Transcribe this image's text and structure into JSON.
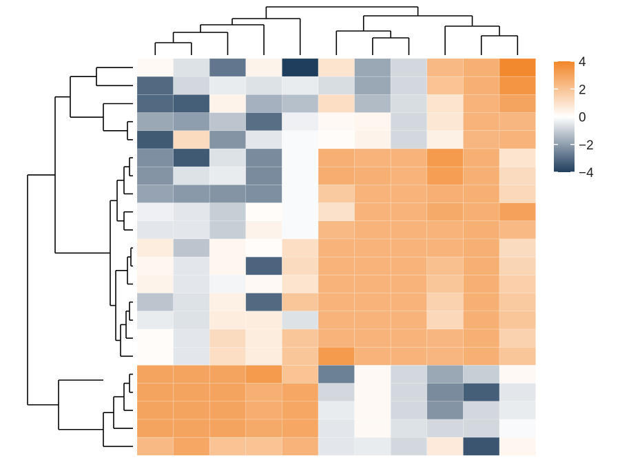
{
  "chart_data": {
    "type": "heatmap",
    "title": "",
    "xlabel": "",
    "ylabel": "",
    "n_rows": 22,
    "n_cols": 11,
    "values": [
      [
        0.2,
        -0.6,
        -2.8,
        0.4,
        -4.0,
        0.9,
        -1.8,
        -0.8,
        2.3,
        2.6,
        3.9
      ],
      [
        -3.1,
        -0.8,
        -0.4,
        -0.6,
        -0.4,
        -0.7,
        -1.8,
        -0.8,
        2.0,
        2.6,
        3.5
      ],
      [
        -3.1,
        -3.3,
        0.4,
        -1.6,
        -1.3,
        1.1,
        -1.4,
        -0.7,
        0.9,
        2.5,
        3.0
      ],
      [
        -1.8,
        -2.0,
        -1.2,
        -3.0,
        -0.3,
        0.2,
        0.3,
        -0.8,
        0.8,
        2.5,
        2.4
      ],
      [
        -3.4,
        1.2,
        -2.2,
        -0.5,
        -0.1,
        0.1,
        0.4,
        -0.8,
        0.5,
        2.4,
        2.5
      ],
      [
        -2.3,
        -3.4,
        -0.6,
        -2.4,
        -0.1,
        2.6,
        2.5,
        2.5,
        3.3,
        2.6,
        0.9
      ],
      [
        -2.2,
        -0.6,
        -0.4,
        -2.4,
        -0.1,
        2.7,
        2.6,
        2.5,
        3.2,
        2.6,
        1.2
      ],
      [
        -1.9,
        -2.1,
        -2.2,
        -2.3,
        -0.1,
        1.8,
        2.5,
        2.5,
        2.6,
        2.6,
        1.3
      ],
      [
        -0.3,
        -0.5,
        -1.0,
        0.1,
        -0.1,
        1.0,
        2.5,
        2.5,
        2.8,
        2.6,
        3.1
      ],
      [
        -0.5,
        -0.5,
        -1.0,
        0.4,
        -0.1,
        2.3,
        2.5,
        2.5,
        2.5,
        2.6,
        2.3
      ],
      [
        0.6,
        -1.2,
        0.3,
        0.1,
        1.1,
        2.5,
        2.5,
        2.5,
        2.5,
        2.6,
        1.2
      ],
      [
        0.3,
        -0.5,
        0.3,
        -3.2,
        1.2,
        2.5,
        2.5,
        2.5,
        2.1,
        2.6,
        1.4
      ],
      [
        0.4,
        -0.5,
        -0.2,
        0.2,
        0.9,
        2.5,
        2.5,
        2.5,
        1.9,
        2.6,
        1.6
      ],
      [
        -1.2,
        -0.6,
        0.5,
        -3.1,
        1.9,
        2.5,
        2.5,
        2.5,
        1.5,
        2.6,
        1.8
      ],
      [
        -0.4,
        -0.6,
        0.6,
        0.6,
        -0.6,
        2.5,
        2.5,
        2.5,
        1.3,
        2.6,
        1.9
      ],
      [
        0.1,
        -0.5,
        1.2,
        0.6,
        1.9,
        2.5,
        2.5,
        2.5,
        2.4,
        2.6,
        1.5
      ],
      [
        0.1,
        -0.5,
        1.1,
        0.6,
        1.9,
        3.3,
        2.5,
        2.5,
        2.4,
        2.6,
        1.9
      ],
      [
        3.0,
        3.0,
        3.0,
        3.3,
        2.0,
        -2.6,
        0.2,
        -0.8,
        -1.8,
        -1.0,
        0.2
      ],
      [
        3.0,
        3.0,
        3.0,
        2.6,
        2.9,
        -0.8,
        0.2,
        -0.8,
        -2.4,
        -3.3,
        -0.5
      ],
      [
        3.0,
        3.0,
        3.0,
        2.7,
        2.9,
        -0.4,
        0.2,
        -0.8,
        -2.2,
        -0.8,
        -0.4
      ],
      [
        3.0,
        3.0,
        3.0,
        2.8,
        2.9,
        -0.5,
        0.2,
        -0.6,
        -0.8,
        -0.8,
        -0.1
      ],
      [
        2.3,
        2.9,
        2.0,
        2.0,
        2.5,
        -0.5,
        -0.4,
        -0.8,
        0.7,
        -3.5,
        0.3
      ]
    ],
    "color_scale": {
      "min": -4,
      "max": 4,
      "low_color": "#1f3d5c",
      "mid_color": "#ffffff",
      "high_color": "#f28629"
    },
    "legend": {
      "position": "right",
      "tick_values": [
        4,
        2,
        0,
        -2,
        -4
      ],
      "tick_labels": [
        "4",
        "2",
        "0",
        "−2",
        "−4"
      ]
    },
    "dendrograms": {
      "rows": true,
      "columns": true
    }
  }
}
